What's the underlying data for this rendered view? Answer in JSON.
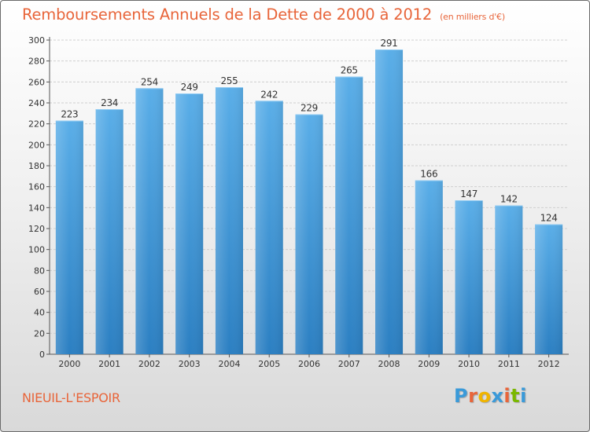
{
  "header": {
    "title": "Remboursements Annuels de la Dette de 2000 à 2012",
    "unit": "(en milliers d'€)"
  },
  "footer": {
    "commune": "NIEUIL-L'ESPOIR",
    "logo_letters": [
      "P",
      "r",
      "o",
      "x",
      "i",
      "t",
      "i"
    ],
    "logo_colors": [
      "#3a9ad9",
      "#e8653a",
      "#f0b400",
      "#3a9ad9",
      "#e8653a",
      "#7ab800",
      "#3a9ad9"
    ]
  },
  "colors": {
    "bar_top": "#5aaee8",
    "bar_bottom": "#2b7fc2",
    "accent": "#e8653a"
  },
  "chart_data": {
    "type": "bar",
    "title": "Remboursements Annuels de la Dette de 2000 à 2012",
    "xlabel": "",
    "ylabel": "",
    "categories": [
      "2000",
      "2001",
      "2002",
      "2003",
      "2004",
      "2005",
      "2006",
      "2007",
      "2008",
      "2009",
      "2010",
      "2011",
      "2012"
    ],
    "values": [
      223,
      234,
      254,
      249,
      255,
      242,
      229,
      265,
      291,
      166,
      147,
      142,
      124
    ],
    "ylim": [
      0,
      300
    ],
    "yticks": [
      0,
      20,
      40,
      60,
      80,
      100,
      120,
      140,
      160,
      180,
      200,
      220,
      240,
      260,
      280,
      300
    ],
    "grid": true,
    "data_labels": true
  }
}
